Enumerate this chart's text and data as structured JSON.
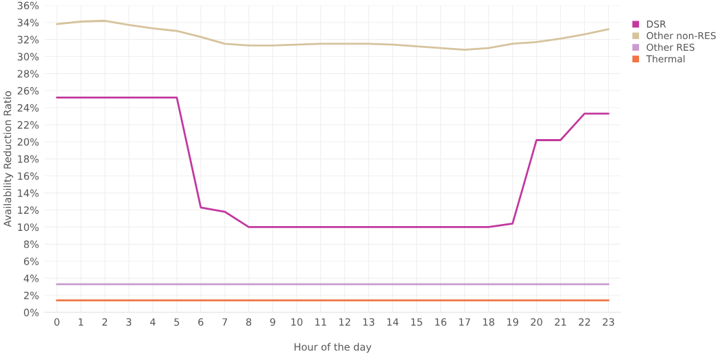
{
  "chart_data": {
    "type": "line",
    "xlabel": "Hour of the day",
    "ylabel": "Availability Reduction Ratio",
    "x": [
      0,
      1,
      2,
      3,
      4,
      5,
      6,
      7,
      8,
      9,
      10,
      11,
      12,
      13,
      14,
      15,
      16,
      17,
      18,
      19,
      20,
      21,
      22,
      23
    ],
    "series": [
      {
        "name": "DSR",
        "color": "#c2389f",
        "values": [
          25.2,
          25.2,
          25.2,
          25.2,
          25.2,
          25.2,
          12.3,
          11.8,
          10,
          10,
          10,
          10,
          10,
          10,
          10,
          10,
          10,
          10,
          10,
          10.4,
          20.2,
          20.2,
          23.3,
          23.3
        ]
      },
      {
        "name": "Other non-RES",
        "color": "#d6c39c",
        "values": [
          33.8,
          34.1,
          34.2,
          33.7,
          33.3,
          33.0,
          32.3,
          31.5,
          31.3,
          31.3,
          31.4,
          31.5,
          31.5,
          31.5,
          31.4,
          31.2,
          31.0,
          30.8,
          31.0,
          31.5,
          31.7,
          32.1,
          32.6,
          33.2
        ]
      },
      {
        "name": "Other RES",
        "color": "#c99bd0",
        "values": [
          3.3,
          3.3,
          3.3,
          3.3,
          3.3,
          3.3,
          3.3,
          3.3,
          3.3,
          3.3,
          3.3,
          3.3,
          3.3,
          3.3,
          3.3,
          3.3,
          3.3,
          3.3,
          3.3,
          3.3,
          3.3,
          3.3,
          3.3,
          3.3
        ]
      },
      {
        "name": "Thermal",
        "color": "#f07545",
        "values": [
          1.4,
          1.4,
          1.4,
          1.4,
          1.4,
          1.4,
          1.4,
          1.4,
          1.4,
          1.4,
          1.4,
          1.4,
          1.4,
          1.4,
          1.4,
          1.4,
          1.4,
          1.4,
          1.4,
          1.4,
          1.4,
          1.4,
          1.4,
          1.4
        ]
      }
    ],
    "xlim": [
      -0.5,
      23.5
    ],
    "xticks": [
      0,
      1,
      2,
      3,
      4,
      5,
      6,
      7,
      8,
      9,
      10,
      11,
      12,
      13,
      14,
      15,
      16,
      17,
      18,
      19,
      20,
      21,
      22,
      23
    ],
    "ylim": [
      0,
      36
    ],
    "yticks": [
      {
        "value": 0,
        "label": "0%"
      },
      {
        "value": 2,
        "label": "2%"
      },
      {
        "value": 4,
        "label": "4%"
      },
      {
        "value": 6,
        "label": "6%"
      },
      {
        "value": 8,
        "label": "8%"
      },
      {
        "value": 10,
        "label": "10%"
      },
      {
        "value": 12,
        "label": "12%"
      },
      {
        "value": 14,
        "label": "14%"
      },
      {
        "value": 16,
        "label": "16%"
      },
      {
        "value": 18,
        "label": "18%"
      },
      {
        "value": 20,
        "label": "20%"
      },
      {
        "value": 22,
        "label": "22%"
      },
      {
        "value": 24,
        "label": "24%"
      },
      {
        "value": 26,
        "label": "26%"
      },
      {
        "value": 28,
        "label": "28%"
      },
      {
        "value": 30,
        "label": "30%"
      },
      {
        "value": 32,
        "label": "32%"
      },
      {
        "value": 34,
        "label": "34%"
      },
      {
        "value": 36,
        "label": "36%"
      }
    ],
    "grid": true,
    "legend": "top right",
    "marker": "none",
    "line_style": "solid"
  }
}
